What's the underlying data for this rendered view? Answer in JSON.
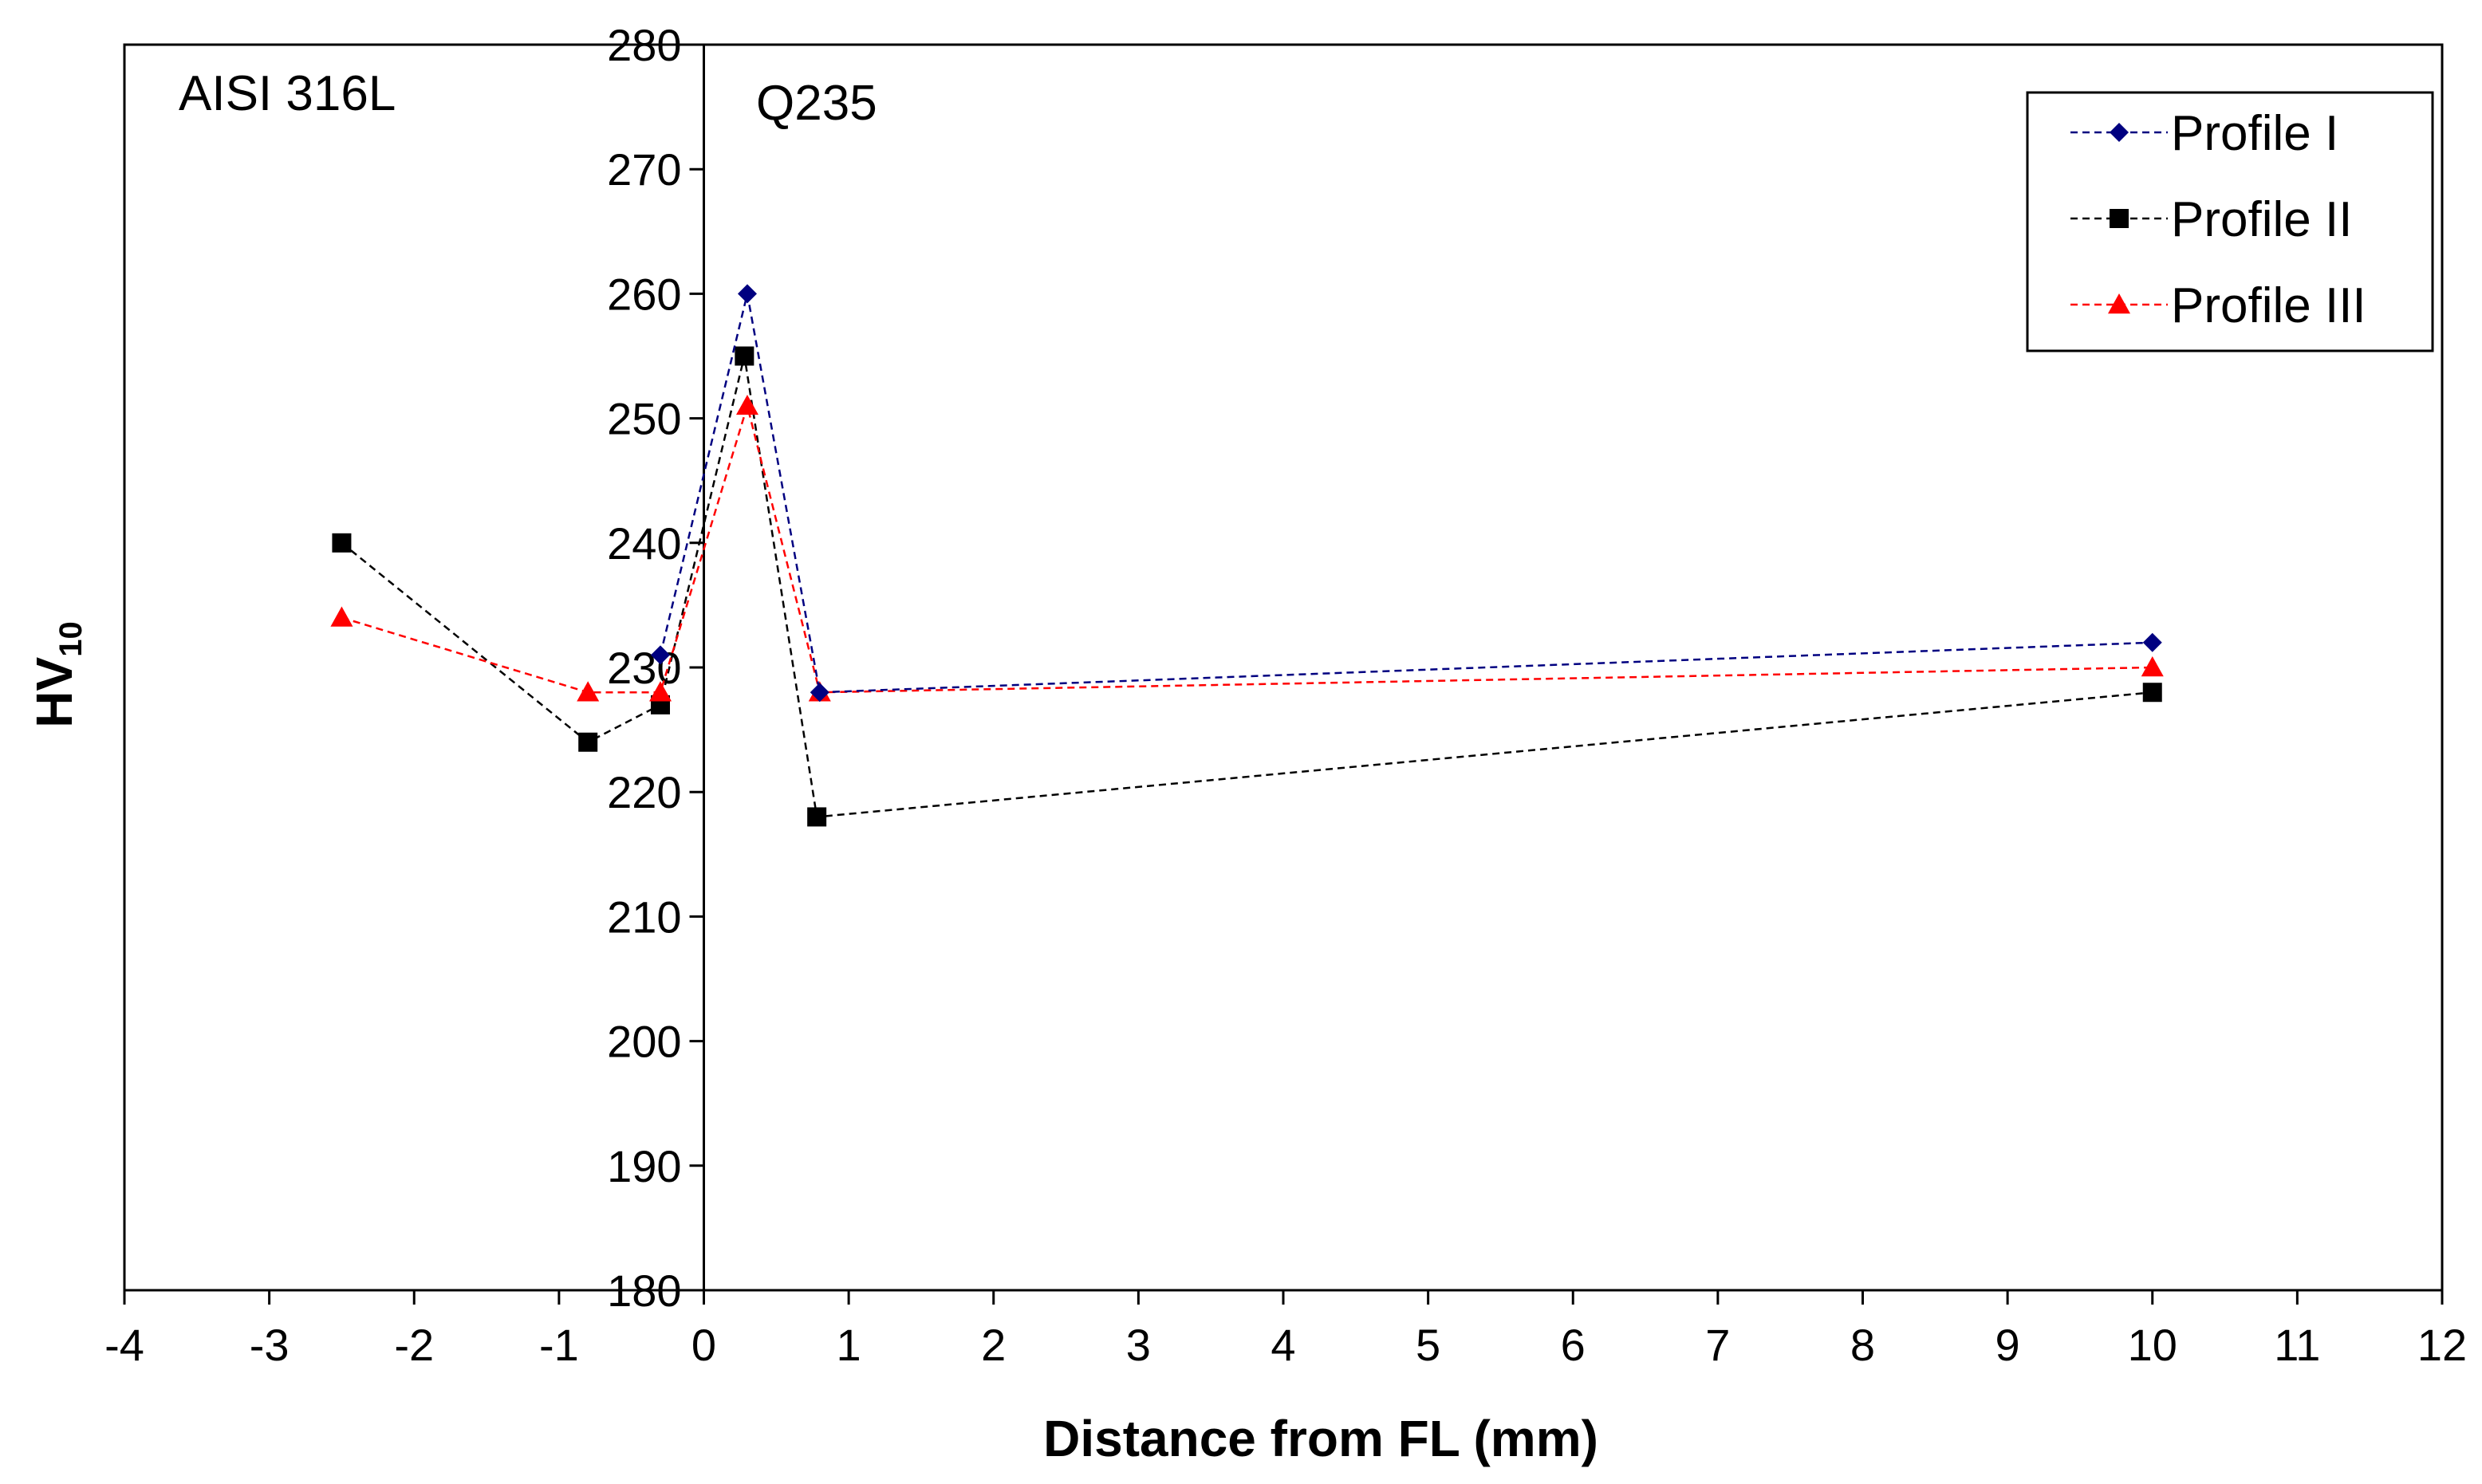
{
  "chart_data": {
    "type": "line",
    "title": "",
    "xlabel": "Distance from FL (mm)",
    "ylabel": "HV",
    "ylabel_subscript": "10",
    "xlim": [
      -4,
      12
    ],
    "ylim": [
      180,
      280
    ],
    "xticks": [
      -4,
      -3,
      -2,
      -1,
      0,
      1,
      2,
      3,
      4,
      5,
      6,
      7,
      8,
      9,
      10,
      11,
      12
    ],
    "yticks": [
      180,
      190,
      200,
      210,
      220,
      230,
      240,
      250,
      260,
      270,
      280
    ],
    "grid": false,
    "legend_position": "top-right",
    "annotations": [
      "AISI 316L",
      "Q235"
    ],
    "series": [
      {
        "name": "Profile I",
        "color": "#000080",
        "marker": "diamond",
        "points": [
          [
            -0.3,
            231
          ],
          [
            0.3,
            260
          ],
          [
            0.8,
            228
          ],
          [
            10,
            232
          ]
        ]
      },
      {
        "name": "Profile II",
        "color": "#000000",
        "marker": "square",
        "points": [
          [
            -2.5,
            240
          ],
          [
            -0.8,
            224
          ],
          [
            -0.3,
            227
          ],
          [
            0.28,
            255
          ],
          [
            0.78,
            218
          ],
          [
            10,
            228
          ]
        ]
      },
      {
        "name": "Profile III",
        "color": "#ff0000",
        "marker": "triangle",
        "points": [
          [
            -2.5,
            234
          ],
          [
            -0.8,
            228
          ],
          [
            -0.3,
            228
          ],
          [
            0.3,
            251
          ],
          [
            0.8,
            228
          ],
          [
            10,
            230
          ]
        ]
      }
    ]
  }
}
